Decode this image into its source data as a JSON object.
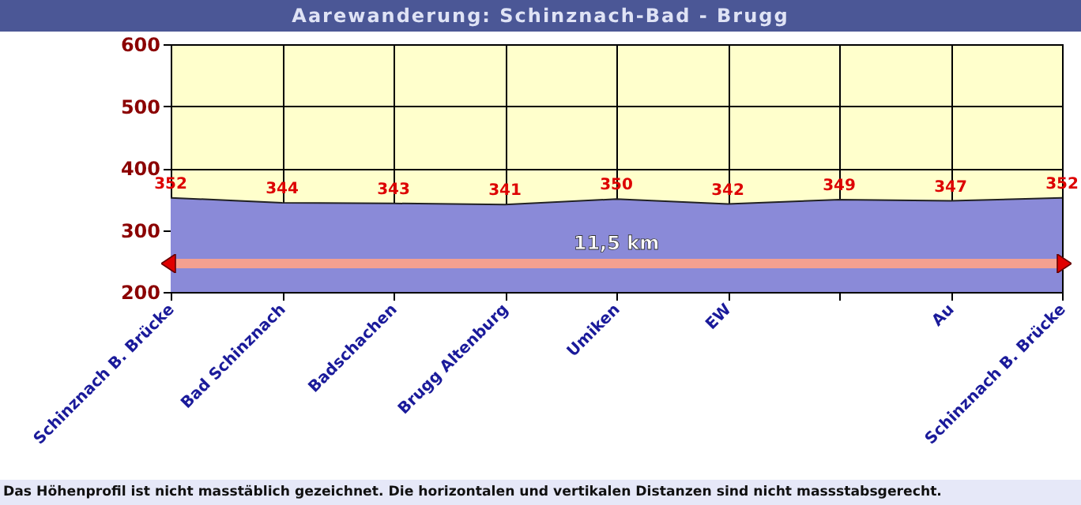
{
  "chart_data": {
    "type": "area",
    "title": "Aarewanderung: Schinznach-Bad - Brugg",
    "categories": [
      "Schinznach B. Brücke",
      "Bad Schinznach",
      "Badschachen",
      "Brugg Altenburg",
      "Umiken",
      "EW",
      null,
      "Au",
      "Schinznach B. Brücke"
    ],
    "values": [
      352,
      344,
      343,
      341,
      350,
      342,
      349,
      347,
      352
    ],
    "color": "#8a8ad8",
    "ylim": [
      200,
      600
    ],
    "yticks": [
      200,
      300,
      400,
      500,
      600
    ],
    "grid": true,
    "data_labels": true,
    "annotations": [
      "11,5 km",
      "Das Höhenprofil ist nicht masstäblich gezeichnet. Die horizontalen und vertikalen Distanzen sind nicht massstabsgerecht."
    ]
  }
}
